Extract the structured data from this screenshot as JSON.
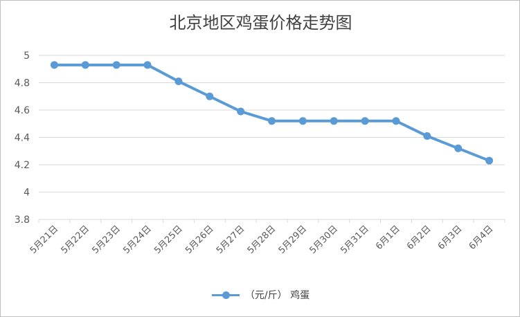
{
  "chart_data": {
    "type": "line",
    "title": "北京地区鸡蛋价格走势图",
    "categories": [
      "5月21日",
      "5月22日",
      "5月23日",
      "5月24日",
      "5月25日",
      "5月26日",
      "5月27日",
      "5月28日",
      "5月29日",
      "5月30日",
      "5月31日",
      "6月1日",
      "6月2日",
      "6月3日",
      "6月4日"
    ],
    "series": [
      {
        "name": "（元/斤） 鸡蛋",
        "values": [
          4.93,
          4.93,
          4.93,
          4.93,
          4.81,
          4.7,
          4.59,
          4.52,
          4.52,
          4.52,
          4.52,
          4.52,
          4.41,
          4.32,
          4.23
        ]
      }
    ],
    "ylim": [
      3.8,
      5
    ],
    "yticks": [
      "3.8",
      "4",
      "4.2",
      "4.4",
      "4.6",
      "4.8",
      "5"
    ],
    "grid": true,
    "legend_position": "bottom",
    "line_color": "#5b9bd5"
  }
}
